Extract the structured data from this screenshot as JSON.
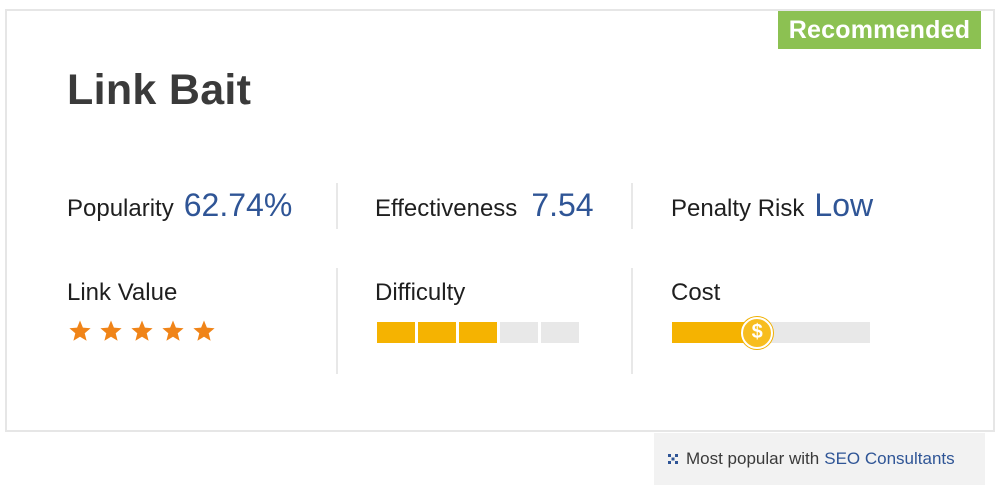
{
  "badge": "Recommended",
  "title": "Link Bait",
  "metrics": {
    "popularity": {
      "label": "Popularity",
      "value": "62.74%"
    },
    "effectiveness": {
      "label": "Effectiveness",
      "value": "7.54"
    },
    "penalty_risk": {
      "label": "Penalty Risk",
      "value": "Low"
    }
  },
  "link_value": {
    "label": "Link Value",
    "rating": 5,
    "max": 5
  },
  "difficulty": {
    "label": "Difficulty",
    "filled": 3,
    "total": 5
  },
  "cost": {
    "label": "Cost",
    "level": 0.43,
    "icon": "dollar-coin-icon",
    "symbol": "$"
  },
  "footer": {
    "prefix": "Most popular with",
    "link": "SEO Consultants"
  },
  "colors": {
    "badge": "#8cc152",
    "accent_blue": "#2f5596",
    "bar_fill": "#f5b301",
    "bar_empty": "#e8e8e8",
    "star": "#f08418"
  }
}
